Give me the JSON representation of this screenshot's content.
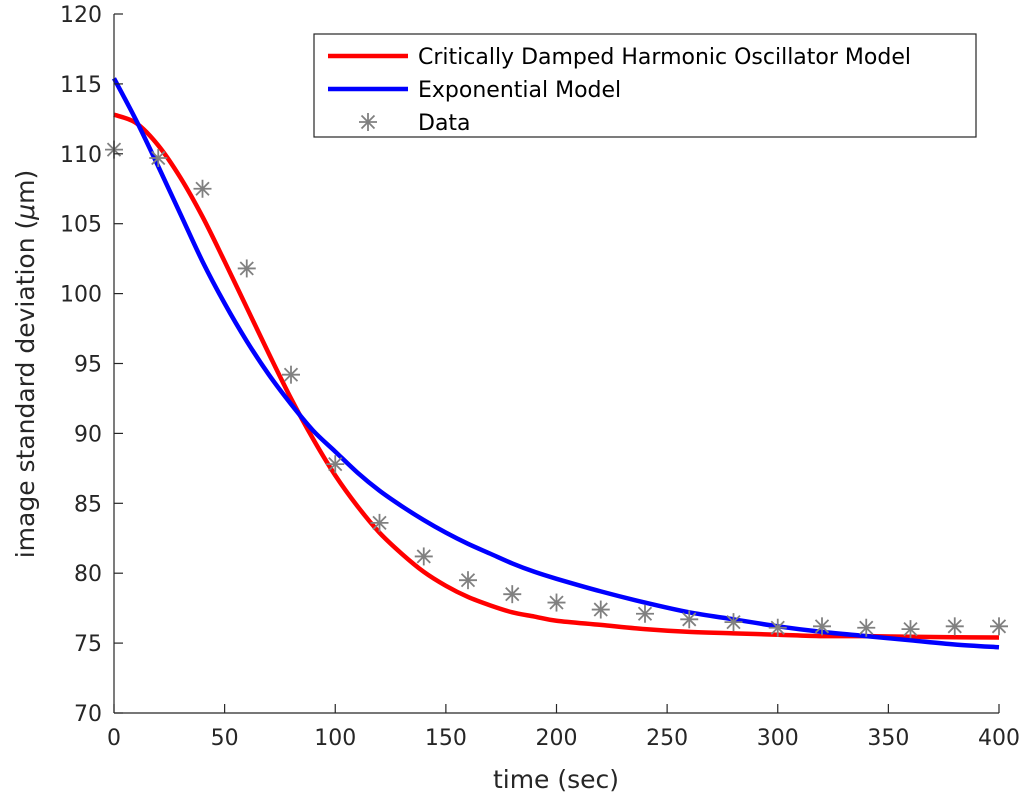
{
  "chart_data": {
    "type": "line",
    "xlabel": "time (sec)",
    "ylabel_prefix": "image standard deviation (",
    "ylabel_mu": "μ",
    "ylabel_suffix": "m)",
    "xlim": [
      0,
      400
    ],
    "ylim": [
      70,
      120
    ],
    "xticks": [
      0,
      50,
      100,
      150,
      200,
      250,
      300,
      350,
      400
    ],
    "yticks": [
      70,
      75,
      80,
      85,
      90,
      95,
      100,
      105,
      110,
      115,
      120
    ],
    "grid": false,
    "legend_position": "top-right",
    "series": [
      {
        "name": "Critically Damped Harmonic Oscillator Model",
        "kind": "line",
        "color": "#ff0000",
        "x": [
          0,
          10,
          20,
          30,
          40,
          50,
          60,
          70,
          80,
          90,
          100,
          110,
          120,
          130,
          140,
          150,
          160,
          170,
          180,
          190,
          200,
          220,
          240,
          260,
          280,
          300,
          320,
          340,
          360,
          380,
          400
        ],
        "y": [
          112.8,
          112.2,
          110.6,
          108.3,
          105.5,
          102.3,
          99.0,
          95.7,
          92.5,
          89.6,
          87.0,
          84.8,
          82.9,
          81.4,
          80.1,
          79.1,
          78.3,
          77.7,
          77.2,
          76.9,
          76.6,
          76.3,
          76.0,
          75.8,
          75.7,
          75.6,
          75.5,
          75.5,
          75.45,
          75.42,
          75.4
        ]
      },
      {
        "name": "Exponential Model",
        "kind": "line",
        "color": "#0000ff",
        "x": [
          0,
          10,
          20,
          30,
          40,
          50,
          60,
          70,
          80,
          90,
          100,
          110,
          120,
          130,
          140,
          150,
          160,
          170,
          180,
          190,
          200,
          220,
          240,
          260,
          280,
          300,
          320,
          340,
          360,
          380,
          400
        ],
        "y": [
          115.4,
          112.4,
          109.1,
          105.7,
          102.3,
          99.3,
          96.6,
          94.2,
          92.1,
          90.2,
          88.7,
          87.2,
          85.9,
          84.8,
          83.8,
          82.9,
          82.1,
          81.4,
          80.7,
          80.1,
          79.6,
          78.7,
          77.9,
          77.2,
          76.7,
          76.2,
          75.8,
          75.5,
          75.2,
          74.9,
          74.7
        ]
      },
      {
        "name": "Data",
        "kind": "marker",
        "color": "#808080",
        "x": [
          0,
          20,
          40,
          60,
          80,
          100,
          120,
          140,
          160,
          180,
          200,
          220,
          240,
          260,
          280,
          300,
          320,
          340,
          360,
          380,
          400
        ],
        "y": [
          110.3,
          109.7,
          107.5,
          101.8,
          94.2,
          87.8,
          83.6,
          81.2,
          79.5,
          78.5,
          77.9,
          77.4,
          77.1,
          76.7,
          76.5,
          76.1,
          76.2,
          76.1,
          76.0,
          76.2,
          76.2
        ]
      }
    ]
  }
}
